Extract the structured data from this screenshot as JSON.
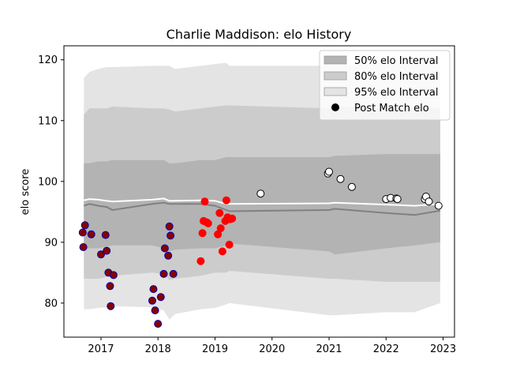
{
  "chart_data": {
    "type": "scatter",
    "title": "Charlie Maddison: elo History",
    "xlabel": "",
    "ylabel": "elo score",
    "xlim": [
      2016.35,
      2023.2
    ],
    "ylim": [
      74.4,
      122.3
    ],
    "x_ticks": [
      2017,
      2018,
      2019,
      2020,
      2021,
      2022,
      2023
    ],
    "x_tick_labels": [
      "2017",
      "2018",
      "2019",
      "2020",
      "2021",
      "2022",
      "2023"
    ],
    "y_ticks": [
      80,
      90,
      100,
      110,
      120
    ],
    "y_tick_labels": [
      "80",
      "90",
      "100",
      "110",
      "120"
    ],
    "grid": false,
    "legend_position": "top-right",
    "legend": [
      {
        "label": "50% elo Interval",
        "color": "#b3b3b3",
        "kind": "patch"
      },
      {
        "label": "80% elo Interval",
        "color": "#cccccc",
        "kind": "patch"
      },
      {
        "label": "95% elo Interval",
        "color": "#e4e4e4",
        "kind": "patch"
      },
      {
        "label": "Post Match elo",
        "color": "#000000",
        "kind": "marker"
      }
    ],
    "bands": {
      "x": [
        2016.7,
        2016.8,
        2016.95,
        2017.1,
        2017.2,
        2017.9,
        2018.1,
        2018.2,
        2018.3,
        2018.75,
        2019.0,
        2019.2,
        2019.25,
        2021.0,
        2021.1,
        2022.0,
        2022.5,
        2022.95
      ],
      "p95_low": [
        79.0,
        79.0,
        79.2,
        79.3,
        79.5,
        79.3,
        78.8,
        77.3,
        78.2,
        79.0,
        79.2,
        79.8,
        80.0,
        78.0,
        78.0,
        78.5,
        78.5,
        80.0
      ],
      "p95_high": [
        117.0,
        118.0,
        118.5,
        118.8,
        118.8,
        119.0,
        119.0,
        119.0,
        118.5,
        119.0,
        119.3,
        119.5,
        119.0,
        119.0,
        119.0,
        119.5,
        119.5,
        119.5
      ],
      "p80_low": [
        84.0,
        84.0,
        84.0,
        84.3,
        84.5,
        85.0,
        84.8,
        83.8,
        84.0,
        84.5,
        85.0,
        85.0,
        85.3,
        84.0,
        84.0,
        83.5,
        83.5,
        83.5
      ],
      "p80_high": [
        111.0,
        112.0,
        112.0,
        112.0,
        112.3,
        112.0,
        112.0,
        111.8,
        111.5,
        112.0,
        112.3,
        112.5,
        112.5,
        112.0,
        112.3,
        112.0,
        112.0,
        112.0
      ],
      "p50_low": [
        89.0,
        89.0,
        89.0,
        89.3,
        89.5,
        89.5,
        89.0,
        88.5,
        88.8,
        89.0,
        89.0,
        89.5,
        89.8,
        88.5,
        88.0,
        89.0,
        89.5,
        90.0
      ],
      "p50_high": [
        103.0,
        103.0,
        103.3,
        103.3,
        103.5,
        103.5,
        103.5,
        103.0,
        103.0,
        103.5,
        103.5,
        104.0,
        104.0,
        104.0,
        104.2,
        104.5,
        104.5,
        104.5
      ]
    },
    "median_line": {
      "color": "#808080",
      "x": [
        2016.7,
        2016.8,
        2016.95,
        2017.1,
        2017.2,
        2017.9,
        2018.1,
        2018.2,
        2018.75,
        2019.0,
        2019.2,
        2019.25,
        2021.0,
        2021.1,
        2022.0,
        2022.5,
        2022.95
      ],
      "y": [
        96.0,
        96.3,
        96.0,
        95.8,
        95.3,
        96.3,
        96.5,
        96.3,
        96.3,
        96.0,
        95.3,
        95.1,
        95.3,
        95.5,
        94.8,
        94.5,
        95.2
      ]
    },
    "mean_line": {
      "color": "#ffffff",
      "x": [
        2016.7,
        2016.8,
        2016.95,
        2017.1,
        2017.2,
        2017.9,
        2018.1,
        2018.2,
        2018.75,
        2019.0,
        2019.2,
        2019.25,
        2021.0,
        2021.1,
        2022.0,
        2022.5,
        2022.95
      ],
      "y": [
        96.9,
        97.1,
        97.0,
        96.8,
        96.7,
        97.0,
        97.2,
        96.8,
        96.9,
        96.8,
        96.3,
        96.3,
        96.4,
        96.5,
        96.2,
        96.0,
        96.3
      ]
    },
    "series": [
      {
        "face_color": "#880000",
        "edge_color": "#0000aa",
        "x": [
          2016.68,
          2016.69,
          2016.72,
          2016.83,
          2017.0,
          2017.08,
          2017.1,
          2017.13,
          2017.16,
          2017.17,
          2017.22,
          2017.9,
          2017.92,
          2017.95,
          2018.0,
          2018.05,
          2018.1,
          2018.12,
          2018.18,
          2018.2,
          2018.22,
          2018.27
        ],
        "y": [
          91.6,
          89.2,
          92.8,
          91.3,
          88.0,
          91.2,
          88.6,
          85.0,
          82.8,
          79.5,
          84.6,
          80.4,
          82.3,
          78.8,
          76.6,
          81.0,
          84.8,
          89.0,
          87.8,
          92.6,
          91.1,
          84.8
        ]
      },
      {
        "face_color": "#ff0000",
        "edge_color": "#ff0000",
        "x": [
          2018.75,
          2018.78,
          2018.8,
          2018.82,
          2018.85,
          2018.88,
          2019.05,
          2019.08,
          2019.1,
          2019.13,
          2019.18,
          2019.2,
          2019.22,
          2019.25,
          2019.27,
          2019.3
        ],
        "y": [
          86.9,
          91.5,
          93.5,
          96.7,
          93.3,
          93.1,
          91.3,
          94.8,
          92.3,
          88.5,
          93.5,
          96.9,
          94.1,
          89.6,
          93.8,
          93.9
        ]
      },
      {
        "face_color": "#ffffff",
        "edge_color": "#000000",
        "x": [
          2019.8,
          2020.98,
          2021.0,
          2021.2,
          2021.4,
          2022.0,
          2022.08,
          2022.18,
          2022.2,
          2022.68,
          2022.7,
          2022.75,
          2022.92
        ],
        "y": [
          98.0,
          101.3,
          101.6,
          100.4,
          99.1,
          97.1,
          97.3,
          97.2,
          97.1,
          97.1,
          97.5,
          96.7,
          96.0
        ]
      }
    ]
  }
}
